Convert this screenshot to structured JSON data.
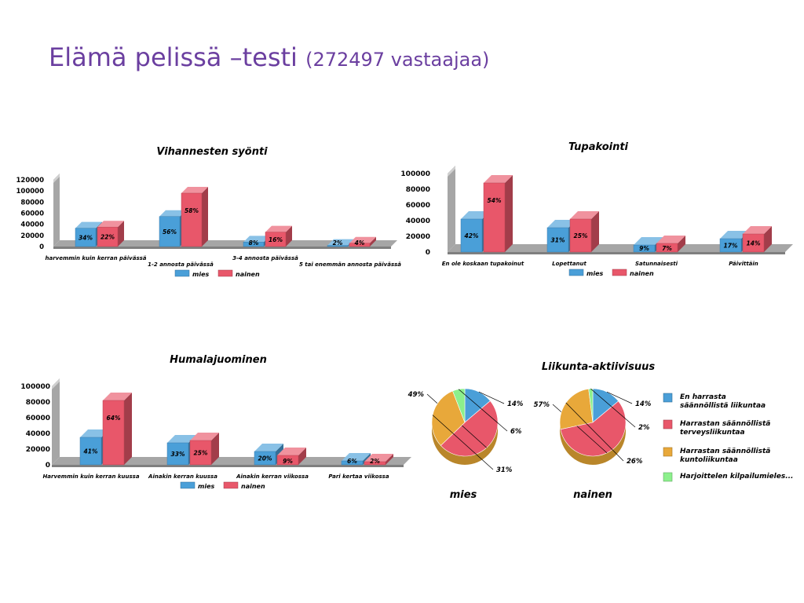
{
  "slide": {
    "title_main": "Elämä pelissä –testi",
    "title_sub": "(272497 vastaajaa)"
  },
  "chart_data": [
    {
      "type": "bar",
      "title": "Vihannesten syönti",
      "categories": [
        "harvemmin kuin kerran päivässä",
        "1-2 annosta päivässä",
        "3-4 annosta päivässä",
        "5 tai enemmän annosta päivässä"
      ],
      "ylim": [
        0,
        120000
      ],
      "yticks": [
        "0",
        "20000",
        "40000",
        "60000",
        "80000",
        "100000",
        "120000"
      ],
      "series": [
        {
          "name": "mies",
          "values": [
            33000,
            54000,
            8000,
            2000
          ],
          "labels": [
            "34%",
            "56%",
            "8%",
            "2%"
          ],
          "color": "#4a9fd8"
        },
        {
          "name": "nainen",
          "values": [
            35000,
            96000,
            26000,
            6000
          ],
          "labels": [
            "22%",
            "58%",
            "16%",
            "4%"
          ],
          "color": "#e8576a"
        }
      ],
      "legend_position": "bottom"
    },
    {
      "type": "bar",
      "title": "Tupakointi",
      "categories": [
        "En ole koskaan tupakoinut",
        "Lopettanut",
        "Satunnaisesti",
        "Päivittäin"
      ],
      "ylim": [
        0,
        100000
      ],
      "yticks": [
        "0",
        "20000",
        "40000",
        "60000",
        "80000",
        "100000"
      ],
      "series": [
        {
          "name": "mies",
          "values": [
            42000,
            31000,
            9000,
            17000
          ],
          "labels": [
            "42%",
            "31%",
            "9%",
            "17%"
          ],
          "color": "#4a9fd8"
        },
        {
          "name": "nainen",
          "values": [
            88000,
            42000,
            11000,
            23000
          ],
          "labels": [
            "54%",
            "25%",
            "7%",
            "14%"
          ],
          "color": "#e8576a"
        }
      ],
      "legend_position": "bottom"
    },
    {
      "type": "bar",
      "title": "Humalajuominen",
      "categories": [
        "Harvemmin kuin kerran kuussa",
        "Ainakin kerran kuussa",
        "Ainakin kerran viikossa",
        "Pari kertaa viikossa"
      ],
      "ylim": [
        0,
        100000
      ],
      "yticks": [
        "0",
        "20000",
        "40000",
        "60000",
        "80000",
        "100000"
      ],
      "series": [
        {
          "name": "mies",
          "values": [
            35000,
            28000,
            17000,
            5000
          ],
          "labels": [
            "41%",
            "33%",
            "20%",
            "6%"
          ],
          "color": "#4a9fd8"
        },
        {
          "name": "nainen",
          "values": [
            82000,
            31000,
            12000,
            4000
          ],
          "labels": [
            "64%",
            "25%",
            "9%",
            "2%"
          ],
          "color": "#e8576a"
        }
      ],
      "legend_position": "bottom"
    },
    {
      "type": "pie",
      "title": "Liikunta-aktiivisuus",
      "categories": [
        "En harrasta säännöllistä liikuntaa",
        "Harrastan säännöllistä terveysliikuntaa",
        "Harrastan säännöllistä kuntoliikuntaa",
        "Harjoittelen kilpailumieles..."
      ],
      "colors": [
        "#4a9fd8",
        "#e8576a",
        "#e8a83a",
        "#8cf08c"
      ],
      "pies": [
        {
          "name": "mies",
          "values": [
            14,
            49,
            31,
            6
          ],
          "labels": [
            "14%",
            "49%",
            "31%",
            "6%"
          ]
        },
        {
          "name": "nainen",
          "values": [
            14,
            57,
            26,
            2
          ],
          "labels": [
            "14%",
            "57%",
            "26%",
            "2%"
          ]
        }
      ],
      "legend_position": "right"
    }
  ]
}
